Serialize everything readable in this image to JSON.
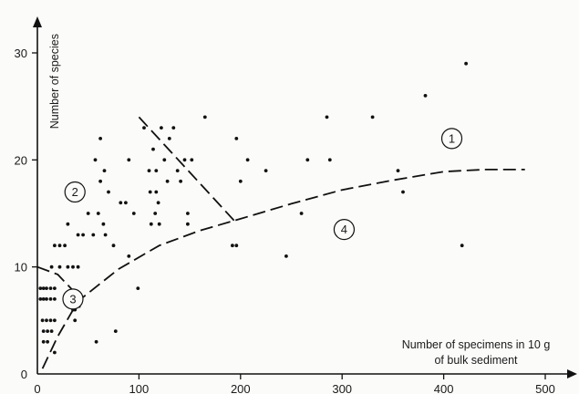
{
  "chart_data": {
    "type": "scatter",
    "ylabel": "Number of species",
    "xlabel_lines": [
      "Number of specimens in 10 g",
      "of bulk sediment"
    ],
    "xlim": [
      0,
      500
    ],
    "ylim": [
      0,
      30
    ],
    "x_ticks": [
      0,
      100,
      200,
      300,
      400,
      500
    ],
    "y_ticks": [
      0,
      10,
      20,
      30
    ],
    "regions": [
      {
        "label": "1",
        "x": 408,
        "y": 22
      },
      {
        "label": "2",
        "x": 37,
        "y": 17
      },
      {
        "label": "3",
        "x": 35,
        "y": 7
      },
      {
        "label": "4",
        "x": 302,
        "y": 13.5
      }
    ],
    "boundaries": [
      {
        "name": "curve",
        "points": [
          [
            5,
            0.5
          ],
          [
            20,
            3.5
          ],
          [
            40,
            6.8
          ],
          [
            80,
            9.8
          ],
          [
            120,
            12.0
          ],
          [
            160,
            13.4
          ],
          [
            200,
            14.5
          ],
          [
            250,
            15.9
          ],
          [
            300,
            17.2
          ],
          [
            350,
            18.1
          ],
          [
            400,
            18.9
          ],
          [
            440,
            19.1
          ],
          [
            480,
            19.1
          ]
        ]
      },
      {
        "name": "diagonal",
        "points": [
          [
            100,
            24
          ],
          [
            195,
            14.2
          ]
        ]
      },
      {
        "name": "small-arc",
        "points": [
          [
            0,
            10
          ],
          [
            20,
            9.3
          ],
          [
            35,
            7.8
          ],
          [
            42,
            6.2
          ]
        ]
      }
    ],
    "points": [
      [
        3,
        8
      ],
      [
        6,
        8
      ],
      [
        9,
        8
      ],
      [
        13,
        8
      ],
      [
        17,
        8
      ],
      [
        3,
        7
      ],
      [
        6,
        7
      ],
      [
        9,
        7
      ],
      [
        13,
        7
      ],
      [
        17,
        7
      ],
      [
        5,
        5
      ],
      [
        9,
        5
      ],
      [
        13,
        5
      ],
      [
        17,
        5
      ],
      [
        6,
        4
      ],
      [
        10,
        4
      ],
      [
        14,
        4
      ],
      [
        6,
        3
      ],
      [
        10,
        3
      ],
      [
        17,
        2
      ],
      [
        14,
        10
      ],
      [
        17,
        12
      ],
      [
        22,
        12
      ],
      [
        22,
        10
      ],
      [
        27,
        12
      ],
      [
        30,
        10
      ],
      [
        30,
        14
      ],
      [
        35,
        10
      ],
      [
        35,
        6
      ],
      [
        37,
        6
      ],
      [
        37,
        5
      ],
      [
        40,
        10
      ],
      [
        40,
        13
      ],
      [
        45,
        13
      ],
      [
        50,
        15
      ],
      [
        55,
        13
      ],
      [
        57,
        20
      ],
      [
        60,
        15
      ],
      [
        62,
        22
      ],
      [
        62,
        18
      ],
      [
        66,
        19
      ],
      [
        65,
        14
      ],
      [
        67,
        13
      ],
      [
        70,
        17
      ],
      [
        75,
        12
      ],
      [
        77,
        4
      ],
      [
        82,
        16
      ],
      [
        87,
        16
      ],
      [
        90,
        11
      ],
      [
        90,
        20
      ],
      [
        95,
        15
      ],
      [
        99,
        8
      ],
      [
        105,
        23
      ],
      [
        110,
        19
      ],
      [
        111,
        17
      ],
      [
        112,
        14
      ],
      [
        114,
        21
      ],
      [
        116,
        15
      ],
      [
        117,
        17
      ],
      [
        117,
        19
      ],
      [
        119,
        16
      ],
      [
        120,
        14
      ],
      [
        122,
        23
      ],
      [
        125,
        20
      ],
      [
        128,
        18
      ],
      [
        130,
        22
      ],
      [
        134,
        23
      ],
      [
        138,
        19
      ],
      [
        141,
        18
      ],
      [
        145,
        20
      ],
      [
        148,
        15
      ],
      [
        148,
        14
      ],
      [
        152,
        20
      ],
      [
        165,
        24
      ],
      [
        192,
        12
      ],
      [
        196,
        22
      ],
      [
        196,
        12
      ],
      [
        200,
        18
      ],
      [
        207,
        20
      ],
      [
        225,
        19
      ],
      [
        245,
        11
      ],
      [
        260,
        15
      ],
      [
        266,
        20
      ],
      [
        285,
        24
      ],
      [
        288,
        20
      ],
      [
        330,
        24
      ],
      [
        355,
        19
      ],
      [
        360,
        17
      ],
      [
        382,
        26
      ],
      [
        418,
        12
      ],
      [
        422,
        29
      ],
      [
        58,
        3
      ]
    ]
  }
}
